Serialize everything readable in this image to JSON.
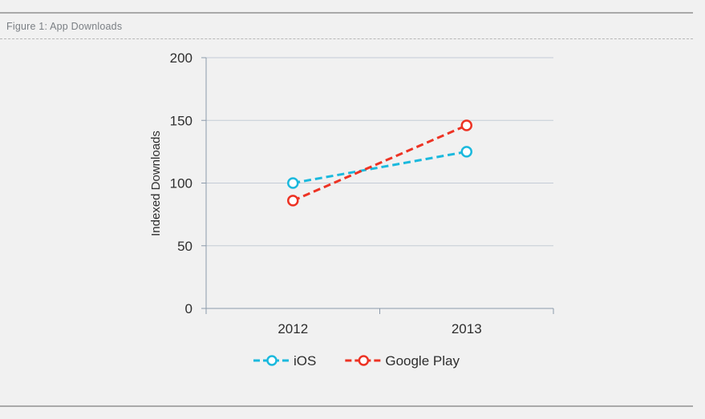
{
  "figure": {
    "title": "Figure 1: App Downloads"
  },
  "colors": {
    "ios": "#1bb9dd",
    "google_play": "#ed3324",
    "grid": "#c4ccd6",
    "axis": "#8c9aab"
  },
  "chart_data": {
    "type": "line",
    "title": "",
    "xlabel": "",
    "ylabel": "Indexed Downloads",
    "categories": [
      "2012",
      "2013"
    ],
    "ylim": [
      0,
      200
    ],
    "yticks": [
      0,
      50,
      100,
      150,
      200
    ],
    "grid": true,
    "legend_position": "bottom",
    "line_style": "dashed",
    "marker": "open-circle",
    "series": [
      {
        "name": "iOS",
        "values": [
          100,
          125
        ],
        "color": "#1bb9dd"
      },
      {
        "name": "Google Play",
        "values": [
          86,
          146
        ],
        "color": "#ed3324"
      }
    ]
  }
}
